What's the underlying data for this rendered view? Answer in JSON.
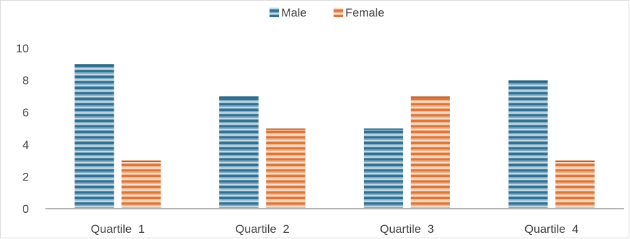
{
  "chart_data": {
    "type": "bar",
    "categories": [
      "Quartile  1",
      "Quartile  2",
      "Quartile  3",
      "Quartile  4"
    ],
    "series": [
      {
        "name": "Male",
        "values": [
          9,
          7,
          5,
          8
        ],
        "color": "#3a7fa6"
      },
      {
        "name": "Female",
        "values": [
          3,
          5,
          7,
          3
        ],
        "color": "#f08a4b"
      }
    ],
    "ylim": [
      0,
      10
    ],
    "yticks": [
      0,
      2,
      4,
      6,
      8,
      10
    ],
    "legend_position": "top-center",
    "grid": false,
    "bar_pattern": "horizontal-stripes",
    "axis_color": "#b3b3b3"
  }
}
